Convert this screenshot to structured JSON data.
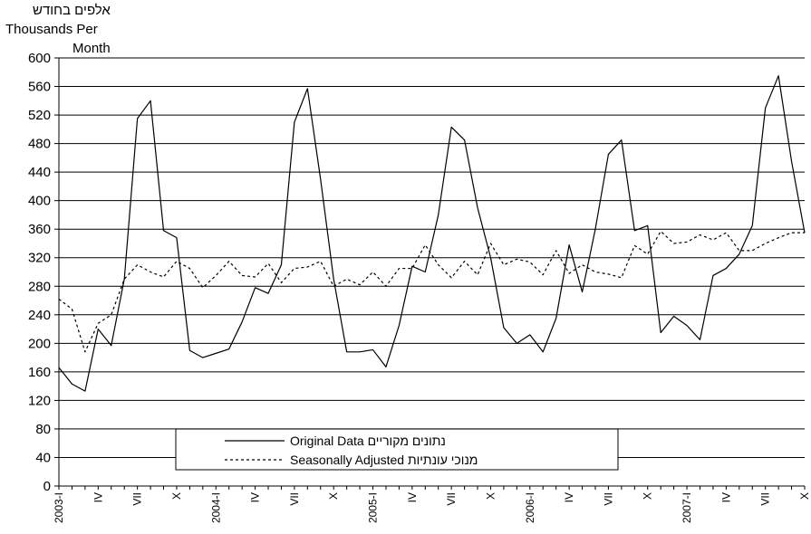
{
  "chart_data": {
    "type": "line",
    "ylabel_lines": [
      "אלפים בחודש",
      "Thousands Per",
      "Month"
    ],
    "ylim": [
      0,
      600
    ],
    "ytick_values": [
      0,
      40,
      80,
      120,
      160,
      200,
      240,
      280,
      320,
      360,
      400,
      440,
      480,
      520,
      560,
      600
    ],
    "grid": true,
    "legend_position": "bottom-center",
    "x_tick_labels": [
      {
        "index": 0,
        "label": "2003-I"
      },
      {
        "index": 3,
        "label": "IV"
      },
      {
        "index": 6,
        "label": "VII"
      },
      {
        "index": 9,
        "label": "X"
      },
      {
        "index": 12,
        "label": "2004-I"
      },
      {
        "index": 15,
        "label": "IV"
      },
      {
        "index": 18,
        "label": "VII"
      },
      {
        "index": 21,
        "label": "X"
      },
      {
        "index": 24,
        "label": "2005-I"
      },
      {
        "index": 27,
        "label": "IV"
      },
      {
        "index": 30,
        "label": "VII"
      },
      {
        "index": 33,
        "label": "X"
      },
      {
        "index": 36,
        "label": "2006-I"
      },
      {
        "index": 39,
        "label": "IV"
      },
      {
        "index": 42,
        "label": "VII"
      },
      {
        "index": 45,
        "label": "X"
      },
      {
        "index": 48,
        "label": "2007-I"
      },
      {
        "index": 51,
        "label": "IV"
      },
      {
        "index": 54,
        "label": "VII"
      },
      {
        "index": 57,
        "label": "X"
      }
    ],
    "series": [
      {
        "name": "Original Data  נתונים מקוריים",
        "style": "solid",
        "color": "#000000",
        "values": [
          166,
          143,
          133,
          220,
          197,
          290,
          515,
          540,
          358,
          348,
          190,
          180,
          186,
          192,
          230,
          278,
          270,
          310,
          510,
          557,
          430,
          290,
          188,
          188,
          191,
          167,
          225,
          308,
          300,
          380,
          503,
          485,
          390,
          320,
          222,
          200,
          212,
          188,
          235,
          338,
          272,
          360,
          465,
          485,
          358,
          365,
          215,
          238,
          225,
          205,
          295,
          305,
          325,
          365,
          530,
          575,
          455,
          355
        ]
      },
      {
        "name": "Seasonally Adjusted מנוכי עונתיות",
        "style": "dashed",
        "color": "#000000",
        "values": [
          262,
          248,
          188,
          228,
          240,
          290,
          310,
          300,
          293,
          315,
          305,
          278,
          295,
          315,
          295,
          293,
          312,
          285,
          305,
          307,
          315,
          280,
          290,
          282,
          300,
          280,
          305,
          305,
          338,
          310,
          292,
          315,
          296,
          340,
          310,
          318,
          314,
          296,
          330,
          298,
          310,
          300,
          297,
          292,
          337,
          325,
          357,
          340,
          342,
          352,
          345,
          355,
          330,
          330,
          340,
          348,
          355,
          355
        ]
      }
    ]
  }
}
